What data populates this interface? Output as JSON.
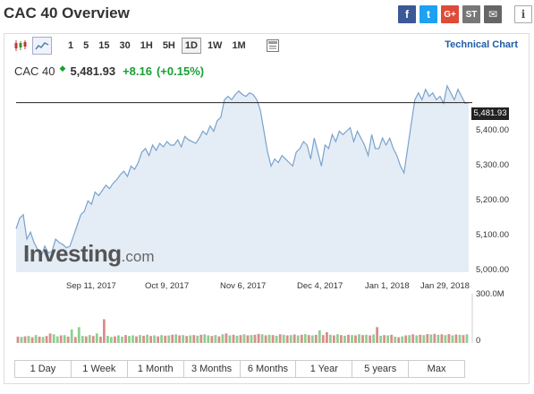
{
  "header": {
    "title": "CAC 40 Overview",
    "share": [
      {
        "name": "facebook",
        "glyph": "f"
      },
      {
        "name": "twitter",
        "glyph": "t"
      },
      {
        "name": "google-plus",
        "glyph": "G+"
      },
      {
        "name": "stocktwits",
        "glyph": "ST"
      },
      {
        "name": "email",
        "glyph": "✉"
      }
    ],
    "info_glyph": "i"
  },
  "toolbar": {
    "timeframes": [
      "1",
      "5",
      "15",
      "30",
      "1H",
      "5H",
      "1D",
      "1W",
      "1M"
    ],
    "active_timeframe": "1D",
    "technical_chart_label": "Technical Chart"
  },
  "quote": {
    "name": "CAC 40",
    "price": "5,481.93",
    "change": "+8.16",
    "change_pct": "(+0.15%)",
    "up_color": "#19a034"
  },
  "chart_data": {
    "type": "area",
    "last_price_label": "5,481.93",
    "last_price": 5481.93,
    "y_ticks": [
      "5,400.00",
      "5,300.00",
      "5,200.00",
      "5,100.00",
      "5,000.00"
    ],
    "y_tick_values": [
      5400,
      5300,
      5200,
      5100,
      5000
    ],
    "ylim": [
      4995,
      5540
    ],
    "x_tick_labels": [
      "Sep 11, 2017",
      "Oct 9, 2017",
      "Nov 6, 2017",
      "Dec 4, 2017",
      "Jan 1, 2018",
      "Jan 29, 2018"
    ],
    "price_series": [
      5120,
      5150,
      5160,
      5090,
      5110,
      5080,
      5060,
      5040,
      5070,
      5050,
      5055,
      5090,
      5080,
      5075,
      5065,
      5070,
      5100,
      5130,
      5160,
      5170,
      5200,
      5190,
      5225,
      5215,
      5230,
      5245,
      5235,
      5250,
      5260,
      5275,
      5285,
      5270,
      5300,
      5290,
      5310,
      5340,
      5350,
      5330,
      5360,
      5345,
      5365,
      5355,
      5370,
      5360,
      5360,
      5375,
      5355,
      5385,
      5375,
      5370,
      5365,
      5380,
      5400,
      5390,
      5415,
      5400,
      5430,
      5440,
      5490,
      5500,
      5490,
      5505,
      5515,
      5505,
      5500,
      5510,
      5505,
      5490,
      5460,
      5400,
      5340,
      5300,
      5320,
      5310,
      5330,
      5320,
      5310,
      5300,
      5340,
      5350,
      5370,
      5360,
      5320,
      5380,
      5340,
      5300,
      5360,
      5350,
      5390,
      5370,
      5400,
      5390,
      5400,
      5410,
      5370,
      5400,
      5380,
      5360,
      5330,
      5390,
      5350,
      5350,
      5380,
      5360,
      5380,
      5350,
      5330,
      5300,
      5280,
      5350,
      5420,
      5490,
      5510,
      5490,
      5520,
      5500,
      5510,
      5490,
      5500,
      5480,
      5530,
      5510,
      5490,
      5520,
      5500,
      5480,
      5482
    ],
    "volume_max_label": "300.0M",
    "volume_min_label": "0",
    "volume_max": 300,
    "volume_series": [
      {
        "v": 40,
        "up": false
      },
      {
        "v": 38,
        "up": true
      },
      {
        "v": 42,
        "up": false
      },
      {
        "v": 45,
        "up": true
      },
      {
        "v": 36,
        "up": false
      },
      {
        "v": 50,
        "up": true
      },
      {
        "v": 40,
        "up": false
      },
      {
        "v": 38,
        "up": true
      },
      {
        "v": 44,
        "up": false
      },
      {
        "v": 60,
        "up": false
      },
      {
        "v": 55,
        "up": true
      },
      {
        "v": 42,
        "up": true
      },
      {
        "v": 48,
        "up": false
      },
      {
        "v": 50,
        "up": true
      },
      {
        "v": 40,
        "up": false
      },
      {
        "v": 85,
        "up": true
      },
      {
        "v": 38,
        "up": false
      },
      {
        "v": 100,
        "up": true
      },
      {
        "v": 45,
        "up": true
      },
      {
        "v": 42,
        "up": false
      },
      {
        "v": 50,
        "up": true
      },
      {
        "v": 44,
        "up": false
      },
      {
        "v": 60,
        "up": true
      },
      {
        "v": 40,
        "up": false
      },
      {
        "v": 150,
        "up": false
      },
      {
        "v": 45,
        "up": true
      },
      {
        "v": 38,
        "up": true
      },
      {
        "v": 42,
        "up": false
      },
      {
        "v": 48,
        "up": true
      },
      {
        "v": 40,
        "up": true
      },
      {
        "v": 50,
        "up": false
      },
      {
        "v": 44,
        "up": true
      },
      {
        "v": 48,
        "up": true
      },
      {
        "v": 42,
        "up": false
      },
      {
        "v": 50,
        "up": true
      },
      {
        "v": 46,
        "up": false
      },
      {
        "v": 52,
        "up": true
      },
      {
        "v": 44,
        "up": false
      },
      {
        "v": 48,
        "up": true
      },
      {
        "v": 42,
        "up": false
      },
      {
        "v": 50,
        "up": true
      },
      {
        "v": 46,
        "up": false
      },
      {
        "v": 48,
        "up": true
      },
      {
        "v": 52,
        "up": false
      },
      {
        "v": 55,
        "up": true
      },
      {
        "v": 48,
        "up": false
      },
      {
        "v": 50,
        "up": true
      },
      {
        "v": 44,
        "up": false
      },
      {
        "v": 48,
        "up": true
      },
      {
        "v": 50,
        "up": false
      },
      {
        "v": 46,
        "up": true
      },
      {
        "v": 52,
        "up": false
      },
      {
        "v": 55,
        "up": true
      },
      {
        "v": 48,
        "up": true
      },
      {
        "v": 44,
        "up": false
      },
      {
        "v": 50,
        "up": true
      },
      {
        "v": 42,
        "up": false
      },
      {
        "v": 55,
        "up": true
      },
      {
        "v": 60,
        "up": false
      },
      {
        "v": 48,
        "up": true
      },
      {
        "v": 52,
        "up": false
      },
      {
        "v": 46,
        "up": true
      },
      {
        "v": 50,
        "up": false
      },
      {
        "v": 55,
        "up": true
      },
      {
        "v": 48,
        "up": false
      },
      {
        "v": 50,
        "up": true
      },
      {
        "v": 52,
        "up": false
      },
      {
        "v": 58,
        "up": false
      },
      {
        "v": 55,
        "up": true
      },
      {
        "v": 48,
        "up": false
      },
      {
        "v": 52,
        "up": true
      },
      {
        "v": 50,
        "up": false
      },
      {
        "v": 46,
        "up": true
      },
      {
        "v": 55,
        "up": false
      },
      {
        "v": 52,
        "up": true
      },
      {
        "v": 48,
        "up": false
      },
      {
        "v": 50,
        "up": true
      },
      {
        "v": 54,
        "up": false
      },
      {
        "v": 48,
        "up": true
      },
      {
        "v": 52,
        "up": false
      },
      {
        "v": 56,
        "up": true
      },
      {
        "v": 50,
        "up": false
      },
      {
        "v": 48,
        "up": true
      },
      {
        "v": 52,
        "up": false
      },
      {
        "v": 80,
        "up": true
      },
      {
        "v": 50,
        "up": false
      },
      {
        "v": 68,
        "up": false
      },
      {
        "v": 52,
        "up": true
      },
      {
        "v": 48,
        "up": false
      },
      {
        "v": 55,
        "up": true
      },
      {
        "v": 50,
        "up": false
      },
      {
        "v": 46,
        "up": true
      },
      {
        "v": 52,
        "up": false
      },
      {
        "v": 50,
        "up": true
      },
      {
        "v": 48,
        "up": false
      },
      {
        "v": 55,
        "up": true
      },
      {
        "v": 50,
        "up": false
      },
      {
        "v": 52,
        "up": true
      },
      {
        "v": 48,
        "up": false
      },
      {
        "v": 54,
        "up": true
      },
      {
        "v": 100,
        "up": false
      },
      {
        "v": 46,
        "up": true
      },
      {
        "v": 50,
        "up": false
      },
      {
        "v": 48,
        "up": true
      },
      {
        "v": 52,
        "up": false
      },
      {
        "v": 40,
        "up": true
      },
      {
        "v": 36,
        "up": false
      },
      {
        "v": 42,
        "up": true
      },
      {
        "v": 48,
        "up": false
      },
      {
        "v": 50,
        "up": true
      },
      {
        "v": 55,
        "up": false
      },
      {
        "v": 48,
        "up": true
      },
      {
        "v": 52,
        "up": false
      },
      {
        "v": 50,
        "up": true
      },
      {
        "v": 56,
        "up": false
      },
      {
        "v": 54,
        "up": true
      },
      {
        "v": 58,
        "up": false
      },
      {
        "v": 52,
        "up": true
      },
      {
        "v": 55,
        "up": false
      },
      {
        "v": 50,
        "up": true
      },
      {
        "v": 56,
        "up": false
      },
      {
        "v": 48,
        "up": true
      },
      {
        "v": 54,
        "up": false
      },
      {
        "v": 52,
        "up": true
      },
      {
        "v": 50,
        "up": false
      },
      {
        "v": 55,
        "up": true
      }
    ],
    "grid": false,
    "line_color": "#7aa2cc",
    "fill_color": "#e4edf6",
    "volume_up_color": "#8fcf8f",
    "volume_down_color": "#d98e8e"
  },
  "logo": {
    "main": "Investing",
    "suffix": ".com"
  },
  "ranges": [
    "1 Day",
    "1 Week",
    "1 Month",
    "3 Months",
    "6 Months",
    "1 Year",
    "5 years",
    "Max"
  ]
}
